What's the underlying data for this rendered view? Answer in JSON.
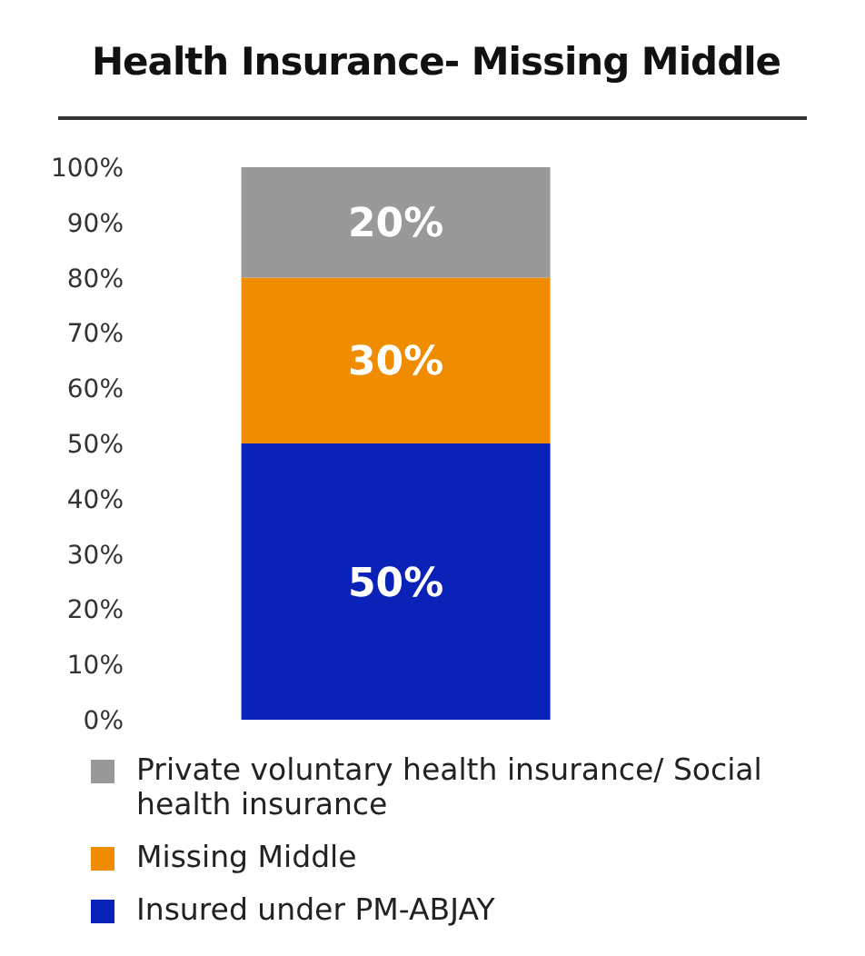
{
  "chart_data": {
    "type": "bar",
    "title": "Health Insurance- Missing Middle",
    "categories": [
      null
    ],
    "stacked": true,
    "series": [
      {
        "name": "Insured under PM-ABJAY",
        "color": "#0a22b8",
        "values": [
          50
        ],
        "value_labels": [
          "50%"
        ]
      },
      {
        "name": "Missing Middle",
        "color": "#f08c00",
        "values": [
          30
        ],
        "value_labels": [
          "30%"
        ]
      },
      {
        "name": "Private voluntary health insurance/ Social health insurance",
        "color": "#999999",
        "values": [
          20
        ],
        "value_labels": [
          "20%"
        ]
      }
    ],
    "ylim": [
      0,
      100
    ],
    "yticks": [
      {
        "value": 0,
        "label": "0%"
      },
      {
        "value": 10,
        "label": "10%"
      },
      {
        "value": 20,
        "label": "20%"
      },
      {
        "value": 30,
        "label": "30%"
      },
      {
        "value": 40,
        "label": "40%"
      },
      {
        "value": 50,
        "label": "50%"
      },
      {
        "value": 60,
        "label": "60%"
      },
      {
        "value": 70,
        "label": "70%"
      },
      {
        "value": 80,
        "label": "80%"
      },
      {
        "value": 90,
        "label": "90%"
      },
      {
        "value": 100,
        "label": "100%"
      }
    ],
    "grid": false,
    "legend": "bottom"
  }
}
